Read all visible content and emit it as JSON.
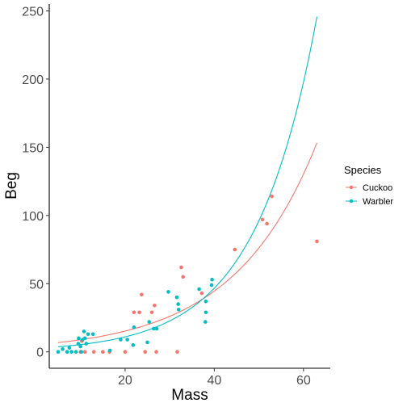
{
  "chart_data": {
    "type": "scatter",
    "xlabel": "Mass",
    "ylabel": "Beg",
    "xlim": [
      3.0,
      66.0
    ],
    "ylim": [
      -12,
      255
    ],
    "x_ticks": [
      "20",
      "40",
      "60"
    ],
    "x_tick_values": [
      20,
      40,
      60
    ],
    "y_ticks": [
      "0",
      "50",
      "100",
      "150",
      "200",
      "250"
    ],
    "y_tick_values": [
      0,
      50,
      100,
      150,
      200,
      250
    ],
    "grid": false,
    "legend_position": "right",
    "legend": {
      "title": "Species",
      "entries": [
        "Cuckoo",
        "Warbler"
      ]
    },
    "series": [
      {
        "name": "Cuckoo",
        "color": "#F8766D",
        "points": [
          [
            10.0,
            0
          ],
          [
            10.3,
            8
          ],
          [
            11.0,
            0
          ],
          [
            13.0,
            0
          ],
          [
            15.0,
            0
          ],
          [
            16.5,
            0
          ],
          [
            20.0,
            0
          ],
          [
            22.0,
            29
          ],
          [
            23.2,
            29
          ],
          [
            23.7,
            42
          ],
          [
            24.5,
            0
          ],
          [
            26.0,
            29
          ],
          [
            26.6,
            34
          ],
          [
            27.0,
            0
          ],
          [
            31.7,
            0
          ],
          [
            32.6,
            62
          ],
          [
            33.0,
            55
          ],
          [
            37.2,
            43
          ],
          [
            44.6,
            75
          ],
          [
            50.8,
            97
          ],
          [
            51.8,
            94
          ],
          [
            52.9,
            114
          ],
          [
            63.0,
            81
          ]
        ],
        "trend": {
          "a": 5.2,
          "b": 0.0537,
          "x_range": [
            5.0,
            63.0
          ]
        }
      },
      {
        "name": "Warbler",
        "color": "#00BFC4",
        "points": [
          [
            5.0,
            0
          ],
          [
            6.0,
            2
          ],
          [
            7.0,
            0
          ],
          [
            7.5,
            3
          ],
          [
            8.0,
            0
          ],
          [
            9.0,
            0
          ],
          [
            9.5,
            6
          ],
          [
            9.6,
            10
          ],
          [
            10.0,
            4
          ],
          [
            10.2,
            0
          ],
          [
            10.5,
            9
          ],
          [
            10.8,
            15
          ],
          [
            11.0,
            10
          ],
          [
            11.3,
            6
          ],
          [
            11.7,
            13
          ],
          [
            12.8,
            13
          ],
          [
            16.6,
            1
          ],
          [
            19.0,
            9
          ],
          [
            20.5,
            9
          ],
          [
            21.8,
            5
          ],
          [
            22.0,
            18
          ],
          [
            25.0,
            7
          ],
          [
            25.4,
            22
          ],
          [
            26.4,
            17
          ],
          [
            27.1,
            17
          ],
          [
            29.7,
            44
          ],
          [
            31.6,
            40
          ],
          [
            31.9,
            35
          ],
          [
            32.0,
            31
          ],
          [
            36.6,
            46
          ],
          [
            38.0,
            22
          ],
          [
            38.1,
            29
          ],
          [
            38.1,
            37
          ],
          [
            39.5,
            53
          ],
          [
            39.4,
            49
          ]
        ],
        "trend": {
          "a": 2.6,
          "b": 0.0722,
          "x_range": [
            5.0,
            63.0
          ]
        }
      }
    ]
  }
}
